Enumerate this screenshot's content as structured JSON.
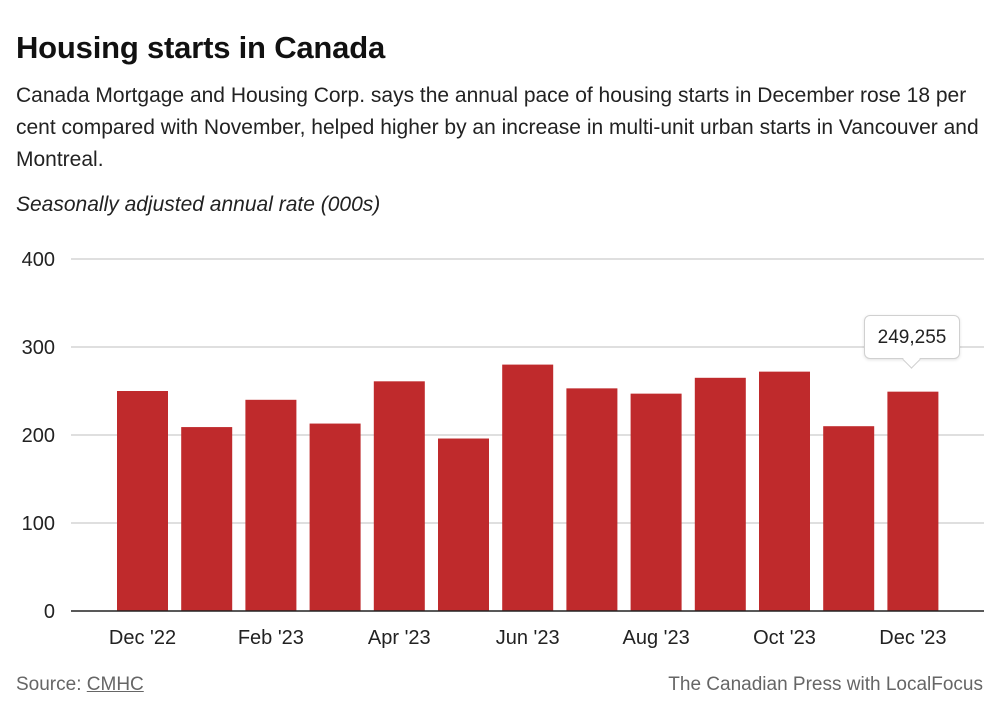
{
  "header": {
    "title": "Housing starts in Canada",
    "subtitle": "Canada Mortgage and Housing Corp. says the annual pace of housing starts in December rose 18 per cent compared with November, helped higher by an increase in multi-unit urban starts in Vancouver and Montreal.",
    "unit_label": "Seasonally adjusted annual rate (000s)"
  },
  "tooltip": {
    "category": "Dec '23",
    "value_text": "249,255"
  },
  "footer": {
    "source_prefix": "Source:",
    "source_link": "CMHC",
    "credit": "The Canadian Press with LocalFocus"
  },
  "colors": {
    "bar": "#bf2a2c",
    "gridline": "#cccccc",
    "axis": "#222222"
  },
  "chart_data": {
    "type": "bar",
    "title": "Housing starts in Canada",
    "ylabel": "Seasonally adjusted annual rate (000s)",
    "xlabel": "",
    "categories": [
      "Dec '22",
      "Jan '23",
      "Feb '23",
      "Mar '23",
      "Apr '23",
      "May '23",
      "Jun '23",
      "Jul '23",
      "Aug '23",
      "Sep '23",
      "Oct '23",
      "Nov '23",
      "Dec '23"
    ],
    "values": [
      250,
      209,
      240,
      213,
      261,
      196,
      280,
      253,
      247,
      265,
      272,
      210,
      249.255
    ],
    "xtick_labels": [
      "Dec '22",
      "Feb '23",
      "Apr '23",
      "Jun '23",
      "Aug '23",
      "Oct '23",
      "Dec '23"
    ],
    "yticks": [
      0,
      100,
      200,
      300,
      400
    ],
    "ylim": [
      0,
      400
    ],
    "grid": true,
    "legend": "none",
    "annotations": [
      {
        "category": "Dec '23",
        "text": "249,255"
      }
    ]
  }
}
